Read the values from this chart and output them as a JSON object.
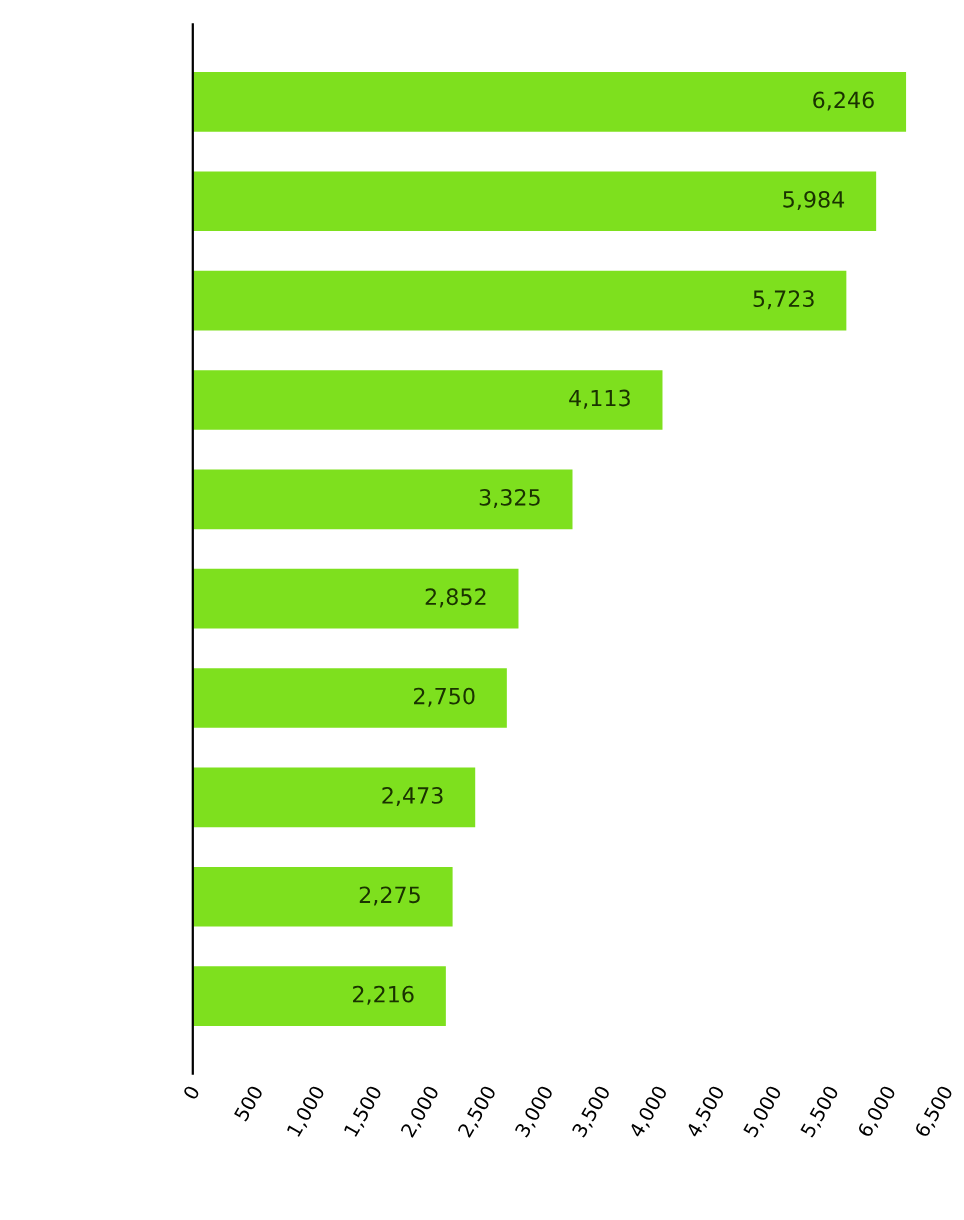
{
  "chart_data": {
    "type": "bar",
    "orientation": "horizontal",
    "categories": [
      null,
      null,
      null,
      null,
      null,
      null,
      null,
      null,
      null,
      null
    ],
    "values": [
      6246,
      5984,
      5723,
      4113,
      3325,
      2852,
      2750,
      2473,
      2275,
      2216
    ],
    "color": "#7ee01e",
    "value_labels": [
      "6,246",
      "5,984",
      "5,723",
      "4,113",
      "3,325",
      "2,852",
      "2,750",
      "2,473",
      "2,275",
      "2,216"
    ],
    "xlim": [
      0,
      6500
    ],
    "xticks": [
      0,
      {
        "value": 500,
        "label": "500"
      },
      {
        "value": 1000,
        "label": "1,000"
      },
      {
        "value": 1500,
        "label": "1,500"
      },
      {
        "value": 2000,
        "label": "2,000"
      },
      {
        "value": 2500,
        "label": "2,500"
      },
      {
        "value": 3000,
        "label": "3,000"
      },
      {
        "value": 3500,
        "label": "3,500"
      },
      {
        "value": 4000,
        "label": "4,000"
      },
      {
        "value": 4500,
        "label": "4,500"
      },
      {
        "value": 5000,
        "label": "5,000"
      },
      {
        "value": 5500,
        "label": "5,500"
      },
      {
        "value": 6000,
        "label": "6,000"
      },
      {
        "value": 6500,
        "label": "6,500"
      }
    ],
    "grid": false
  }
}
